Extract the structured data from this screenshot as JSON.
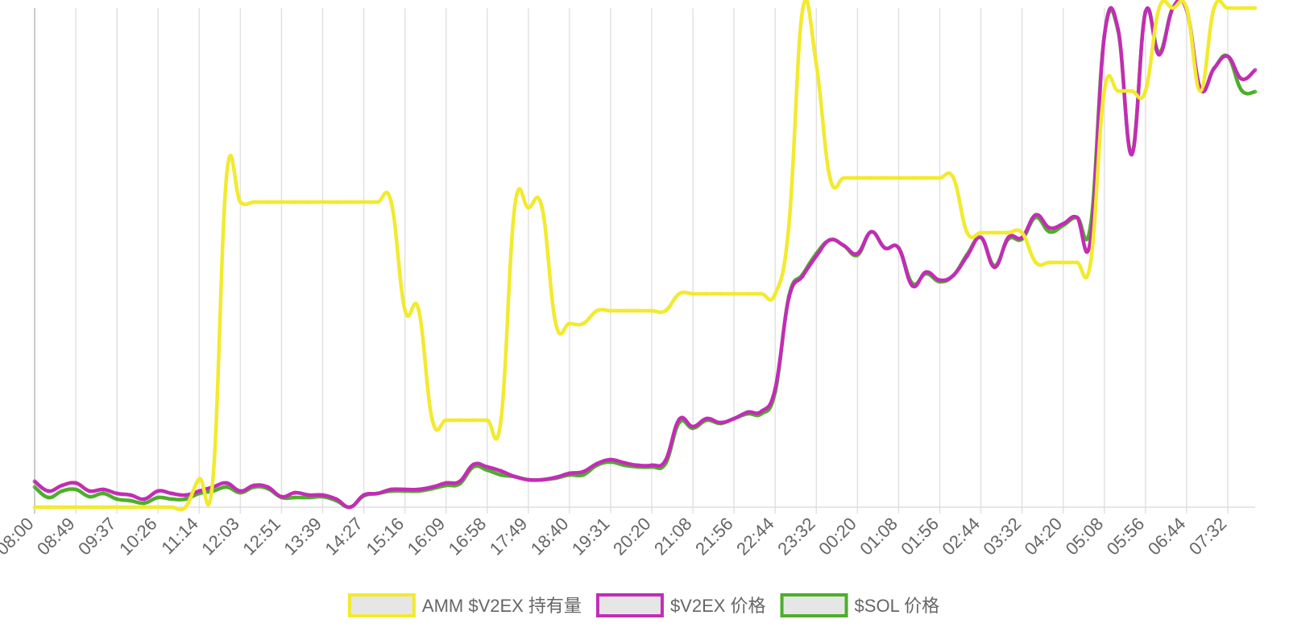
{
  "chart_data": {
    "type": "line",
    "categories": [
      "08:00",
      null,
      null,
      "08:49",
      null,
      null,
      "09:37",
      null,
      null,
      "10:26",
      null,
      null,
      "11:14",
      null,
      null,
      "12:03",
      null,
      null,
      "12:51",
      null,
      null,
      "13:39",
      null,
      null,
      "14:27",
      null,
      null,
      "15:16",
      null,
      null,
      "16:09",
      null,
      null,
      "16:58",
      null,
      null,
      "17:49",
      null,
      null,
      "18:40",
      null,
      null,
      "19:31",
      null,
      null,
      "20:20",
      null,
      null,
      "21:08",
      null,
      null,
      "21:56",
      null,
      null,
      "22:44",
      null,
      null,
      "23:32",
      null,
      null,
      "00:20",
      null,
      null,
      "01:08",
      null,
      null,
      "01:56",
      null,
      null,
      "02:44",
      null,
      null,
      "03:32",
      null,
      null,
      "04:20",
      null,
      null,
      "05:08",
      null,
      null,
      "05:56",
      null,
      null,
      "06:44",
      null,
      null,
      "07:32",
      null,
      null
    ],
    "series": [
      {
        "name": "AMM $V2EX 持有量",
        "color": "#f2ea2e",
        "values": [
          0,
          0,
          0,
          0,
          0,
          0,
          0,
          0,
          0,
          0,
          0,
          0,
          35,
          35,
          412,
          379,
          379,
          379,
          379,
          379,
          379,
          379,
          379,
          379,
          379,
          379,
          379,
          245,
          245,
          108,
          108,
          108,
          108,
          108,
          108,
          372,
          372,
          372,
          228,
          228,
          228,
          244,
          244,
          244,
          244,
          244,
          244,
          265,
          265,
          265,
          265,
          265,
          265,
          265,
          265,
          350,
          618,
          550,
          409,
          409,
          409,
          409,
          409,
          409,
          409,
          409,
          409,
          409,
          341,
          341,
          341,
          341,
          341,
          304,
          304,
          304,
          304,
          304,
          517,
          517,
          517,
          517,
          620,
          620,
          620,
          517,
          620,
          620,
          620,
          620
        ]
      },
      {
        "name": "$V2EX 价格",
        "color": "#c22db5",
        "values": [
          32,
          20,
          27,
          30,
          20,
          22,
          17,
          15,
          10,
          20,
          17,
          15,
          20,
          25,
          30,
          20,
          27,
          25,
          13,
          18,
          15,
          15,
          10,
          0,
          15,
          17,
          22,
          22,
          22,
          25,
          30,
          32,
          53,
          50,
          45,
          38,
          34,
          34,
          37,
          42,
          44,
          54,
          59,
          55,
          52,
          52,
          58,
          109,
          100,
          110,
          105,
          110,
          118,
          119,
          147,
          260,
          287,
          312,
          332,
          325,
          315,
          342,
          322,
          322,
          275,
          292,
          282,
          288,
          312,
          335,
          298,
          335,
          335,
          363,
          347,
          352,
          360,
          332,
          585,
          594,
          438,
          615,
          562,
          620,
          618,
          520,
          545,
          560,
          532,
          543
        ]
      },
      {
        "name": "$SOL 价格",
        "color": "#4caf2a",
        "values": [
          25,
          12,
          20,
          22,
          13,
          17,
          10,
          8,
          5,
          12,
          10,
          10,
          17,
          20,
          25,
          18,
          25,
          23,
          12,
          12,
          12,
          13,
          8,
          0,
          14,
          17,
          20,
          20,
          20,
          23,
          27,
          29,
          50,
          46,
          40,
          38,
          34,
          34,
          36,
          40,
          40,
          52,
          56,
          52,
          50,
          50,
          54,
          105,
          98,
          108,
          104,
          110,
          116,
          116,
          143,
          262,
          289,
          315,
          332,
          325,
          313,
          342,
          322,
          322,
          278,
          290,
          280,
          288,
          314,
          335,
          300,
          333,
          333,
          360,
          342,
          350,
          360,
          350,
          585,
          592,
          440,
          615,
          565,
          620,
          618,
          520,
          545,
          560,
          518,
          516
        ]
      }
    ],
    "ylim": [
      0,
      620
    ],
    "grid": true,
    "legend": "bottom"
  }
}
